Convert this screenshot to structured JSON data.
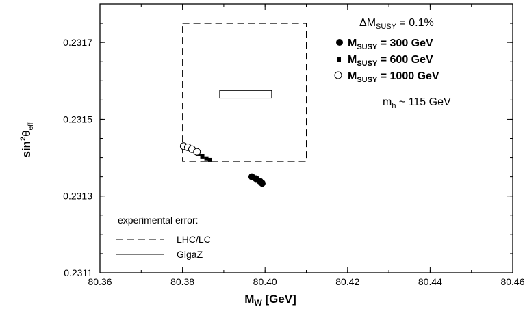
{
  "chart_data": {
    "type": "scatter",
    "xlabel_main": "M",
    "xlabel_sub": "W",
    "xlabel_rest": " [GeV]",
    "ylabel_main": "sin",
    "ylabel_sup": "2",
    "ylabel_theta": "θ",
    "ylabel_sub": "eff",
    "xlim": [
      80.36,
      80.46
    ],
    "ylim": [
      0.2311,
      0.2318
    ],
    "xticks": [
      "80.36",
      "80.38",
      "80.40",
      "80.42",
      "80.44",
      "80.46"
    ],
    "yticks": [
      "0.2311",
      "0.2313",
      "0.2315",
      "0.2317"
    ],
    "annotations": {
      "delta_main": "ΔM",
      "delta_sub": "SUSY",
      "delta_rest": " = 0.1%",
      "mh_main": "m",
      "mh_sub": "h",
      "mh_rest": " ~ 115 GeV"
    },
    "series": [
      {
        "name_main": "M",
        "name_sub": "SUSY",
        "name_rest": " = 300 GeV",
        "marker": "filled-circle",
        "points": [
          [
            80.3968,
            0.23135
          ],
          [
            80.3978,
            0.231345
          ],
          [
            80.3988,
            0.231338
          ],
          [
            80.3993,
            0.231333
          ]
        ]
      },
      {
        "name_main": "M",
        "name_sub": "SUSY",
        "name_rest": " = 600 GeV",
        "marker": "filled-square",
        "points": [
          [
            80.3838,
            0.23141
          ],
          [
            80.3848,
            0.231403
          ],
          [
            80.3858,
            0.231398
          ],
          [
            80.3866,
            0.231394
          ]
        ]
      },
      {
        "name_main": "M",
        "name_sub": "SUSY",
        "name_rest": " = 1000 GeV",
        "marker": "open-circle",
        "points": [
          [
            80.3803,
            0.23143
          ],
          [
            80.3813,
            0.231427
          ],
          [
            80.3823,
            0.231422
          ],
          [
            80.3835,
            0.231415
          ]
        ]
      }
    ],
    "error_boxes": [
      {
        "label": "LHC/LC",
        "style": "dashed",
        "x": [
          80.38,
          80.41
        ],
        "y": [
          0.23139,
          0.23175
        ]
      },
      {
        "label": "GigaZ",
        "style": "solid",
        "x": [
          80.389,
          80.4016
        ],
        "y": [
          0.231555,
          0.231575
        ]
      }
    ],
    "legend_title": "experimental error:"
  }
}
